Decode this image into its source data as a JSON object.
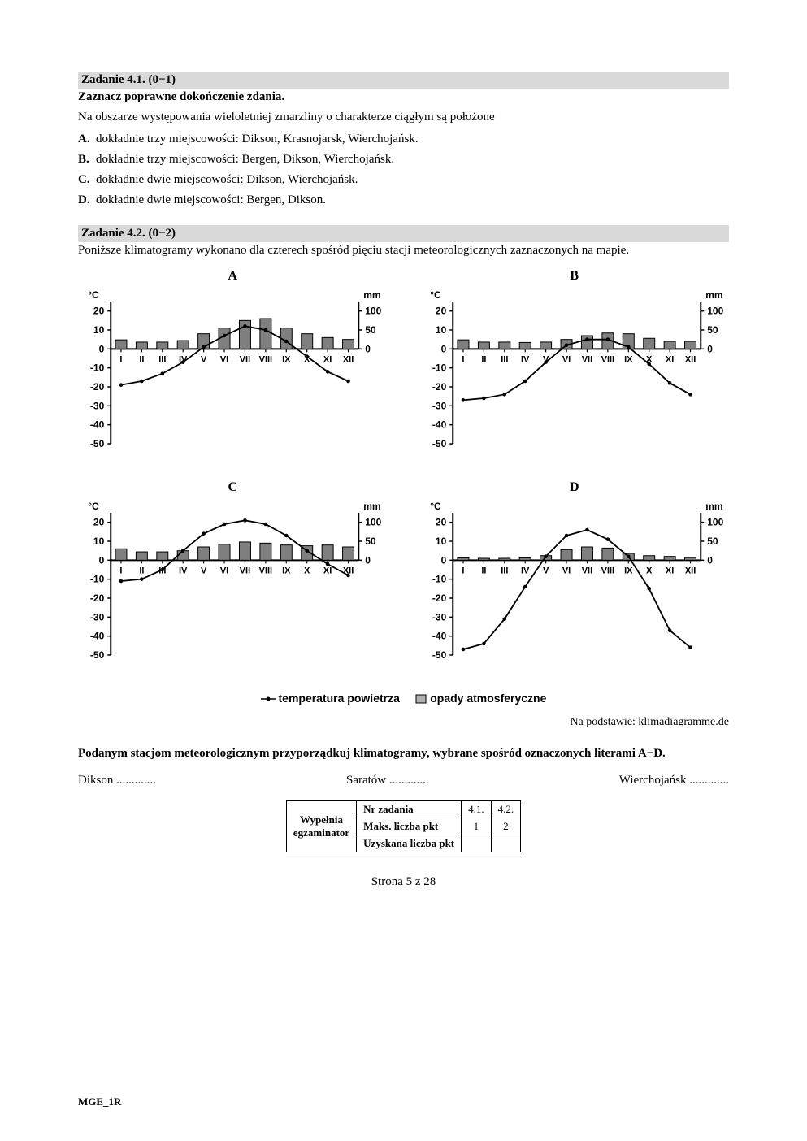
{
  "task41": {
    "header": "Zadanie 4.1. (0−1)",
    "instruction": "Zaznacz poprawne dokończenie zdania.",
    "stem": "Na obszarze występowania wieloletniej zmarzliny o charakterze ciągłym są położone",
    "options": {
      "A": "dokładnie trzy miejscowości: Dikson, Krasnojarsk, Wierchojańsk.",
      "B": "dokładnie trzy miejscowości: Bergen, Dikson, Wierchojańsk.",
      "C": "dokładnie dwie miejscowości: Dikson, Wierchojańsk.",
      "D": "dokładnie dwie miejscowości: Bergen, Dikson."
    }
  },
  "task42": {
    "header": "Zadanie 4.2. (0−2)",
    "intro": "Poniższe klimatogramy wykonano dla czterech spośród pięciu stacji meteorologicznych zaznaczonych na mapie."
  },
  "axes": {
    "y_label_left": "°C",
    "y_label_right": "mm",
    "y_ticks": [
      "20",
      "10",
      "0",
      "-10",
      "-20",
      "-30",
      "-40",
      "-50"
    ],
    "y_ticks_right": [
      "100",
      "50",
      "0"
    ],
    "x_labels": [
      "I",
      "II",
      "III",
      "IV",
      "V",
      "VI",
      "VII",
      "VIII",
      "IX",
      "X",
      "XI",
      "XII"
    ],
    "colors": {
      "axis": "#000000",
      "bar_fill": "#7f7f7f",
      "bar_stroke": "#000000",
      "line": "#000000",
      "font": "#000000"
    },
    "y_range_c": [
      -50,
      25
    ],
    "y_range_mm": [
      0,
      100
    ]
  },
  "charts": {
    "A": {
      "title": "A",
      "temp": [
        -19,
        -17,
        -13,
        -7,
        1,
        7,
        12,
        10,
        4,
        -4,
        -12,
        -17
      ],
      "precip": [
        24,
        18,
        18,
        22,
        40,
        55,
        75,
        80,
        55,
        40,
        30,
        25
      ]
    },
    "B": {
      "title": "B",
      "temp": [
        -27,
        -26,
        -24,
        -17,
        -7,
        2,
        5,
        5,
        1,
        -8,
        -18,
        -24
      ],
      "precip": [
        24,
        18,
        18,
        17,
        18,
        25,
        35,
        42,
        40,
        28,
        20,
        20
      ]
    },
    "C": {
      "title": "C",
      "temp": [
        -11,
        -10,
        -5,
        5,
        14,
        19,
        21,
        19,
        13,
        5,
        -2,
        -8
      ],
      "precip": [
        30,
        22,
        22,
        25,
        35,
        42,
        48,
        45,
        40,
        38,
        40,
        35
      ]
    },
    "D": {
      "title": "D",
      "temp": [
        -47,
        -44,
        -31,
        -14,
        2,
        13,
        16,
        11,
        2,
        -15,
        -37,
        -46
      ],
      "precip": [
        6,
        5,
        5,
        6,
        12,
        28,
        35,
        32,
        18,
        12,
        10,
        7
      ]
    }
  },
  "legend": {
    "temp": "temperatura powietrza",
    "precip": "opady atmosferyczne"
  },
  "source": "Na podstawie: klimadiagramme.de",
  "matching": {
    "instruction": "Podanym stacjom meteorologicznym przyporządkuj klimatogramy, wybrane spośród oznaczonych literami A−D.",
    "stations": [
      "Dikson .............",
      "Saratów .............",
      "Wierchojańsk ............."
    ]
  },
  "score": {
    "side": "Wypełnia egzaminator",
    "rows": {
      "nr": "Nr zadania",
      "maks": "Maks. liczba pkt",
      "uzys": "Uzyskana liczba pkt"
    },
    "cols": [
      "4.1.",
      "4.2."
    ],
    "maks": [
      "1",
      "2"
    ]
  },
  "page_num": "Strona 5 z 28",
  "footer": "MGE_1R"
}
